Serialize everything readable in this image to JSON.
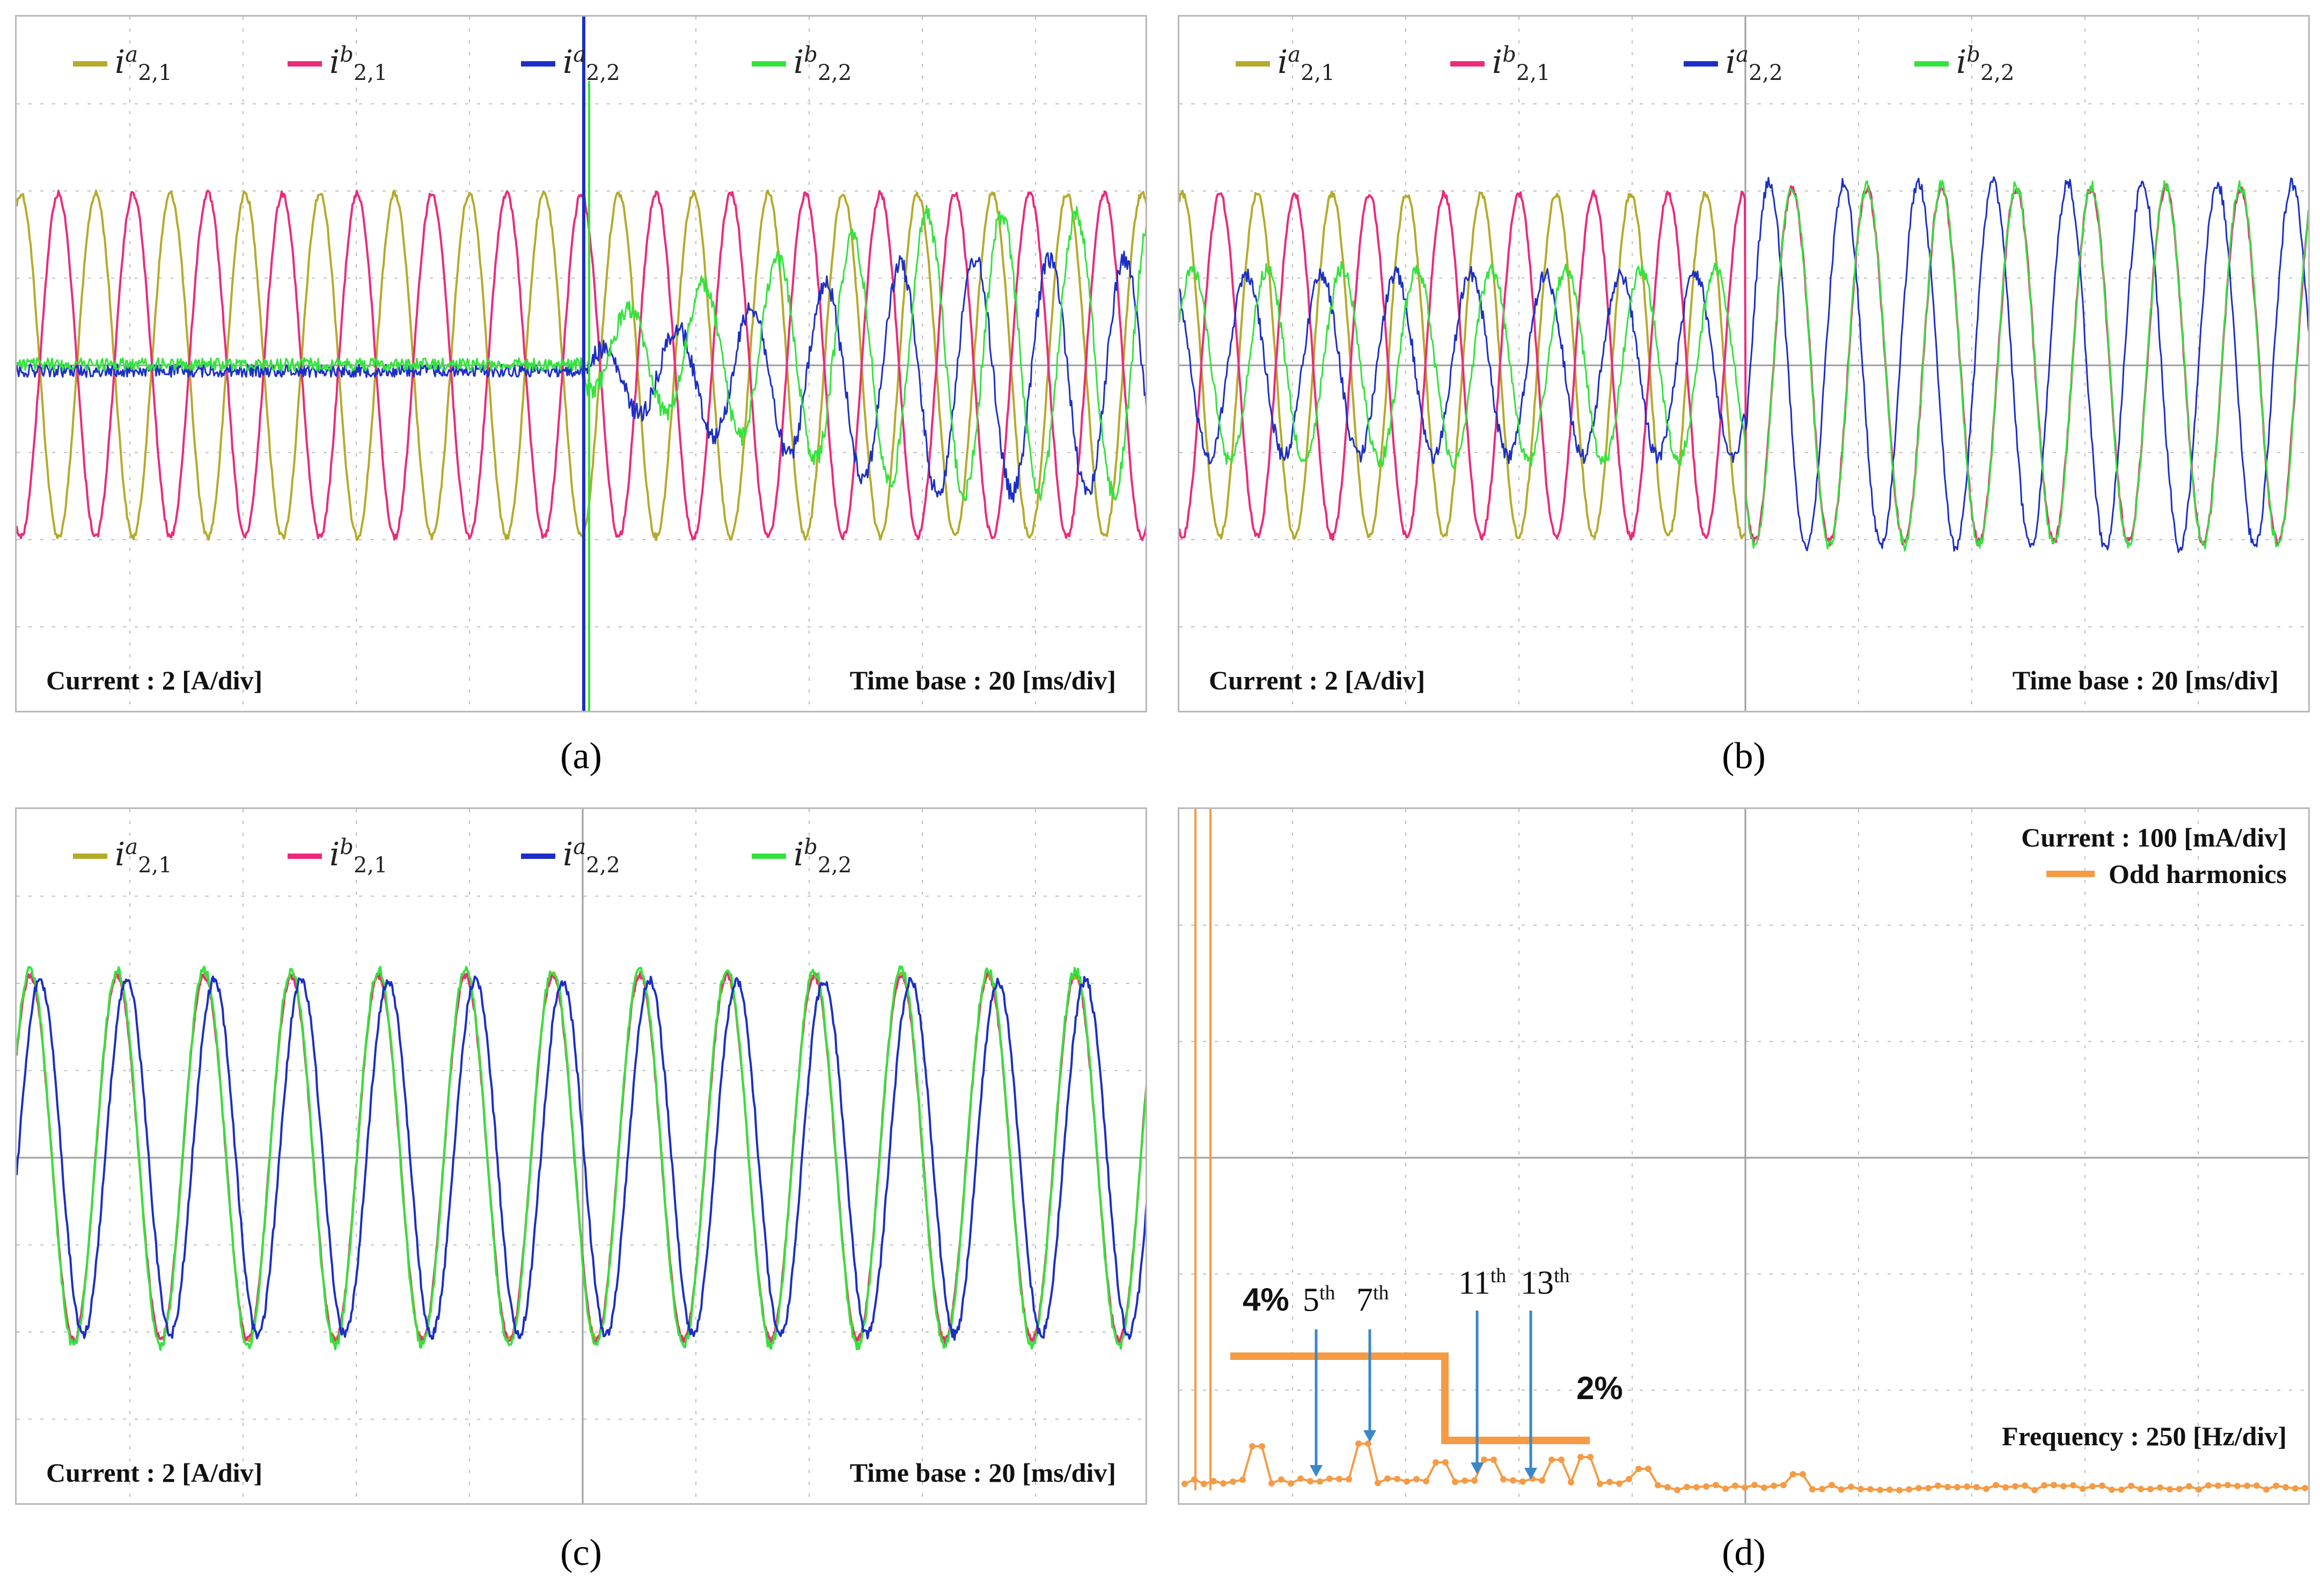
{
  "colors": {
    "ia21": "#b5aa2b",
    "ib21": "#ec2a7c",
    "ia22": "#1b2fc6",
    "ib22": "#33e33c",
    "harmonics": "#f59b45",
    "arrow": "#3a87c8",
    "grid": "#bdbdbd"
  },
  "legend": [
    {
      "key": "ia21",
      "base": "i",
      "sup": "a",
      "sub": "2,1"
    },
    {
      "key": "ib21",
      "base": "i",
      "sup": "b",
      "sub": "2,1"
    },
    {
      "key": "ia22",
      "base": "i",
      "sup": "a",
      "sub": "2,2"
    },
    {
      "key": "ib22",
      "base": "i",
      "sup": "b",
      "sub": "2,2"
    }
  ],
  "panels": {
    "a": {
      "caption": "(a)",
      "scale_left": "Current : 2 [A/div]",
      "scale_right": "Time base : 20 [ms/div]"
    },
    "b": {
      "caption": "(b)",
      "scale_left": "Current : 2 [A/div]",
      "scale_right": "Time base : 20 [ms/div]"
    },
    "c": {
      "caption": "(c)",
      "scale_left": "Current : 2 [A/div]",
      "scale_right": "Time base : 20 [ms/div]"
    },
    "d": {
      "caption": "(d)",
      "scale_top": "Current : 100 [mA/div]",
      "legend_label": "Odd harmonics",
      "scale_bottom": "Frequency : 250 [Hz/div]",
      "limit_high": "4%",
      "limit_low": "2%",
      "h5": "5",
      "h7": "7",
      "h11": "11",
      "h13": "13",
      "th": "th"
    }
  },
  "chart_data": [
    {
      "type": "line",
      "title": "(a)",
      "xlabel": "Time base : 20 [ms/div]",
      "ylabel": "Current : 2 [A/div]",
      "x_divisions": 10,
      "y_divisions": 6,
      "ylim_A": [
        -6,
        6
      ],
      "description_of_series": "i2,1 currents steady sinusoids throughout; i2,2 currents near zero until step at ~5 div then ramp up",
      "series": [
        {
          "name": "i^a_{2,1}",
          "amplitude_A": 3.0,
          "period_div": 0.66,
          "phase_deg": 0
        },
        {
          "name": "i^b_{2,1}",
          "amplitude_A": 3.0,
          "period_div": 0.66,
          "phase_deg": 180
        },
        {
          "name": "i^a_{2,2}",
          "amplitude_A_before": 0.1,
          "amplitude_A_after": 1.8,
          "period_div": 0.66,
          "step_at_div": 5.0
        },
        {
          "name": "i^b_{2,2}",
          "amplitude_A_before": 0.1,
          "amplitude_A_after": 1.8,
          "period_div": 0.66,
          "step_at_div": 5.0
        }
      ]
    },
    {
      "type": "line",
      "title": "(b)",
      "xlabel": "Time base : 20 [ms/div]",
      "ylabel": "Current : 2 [A/div]",
      "x_divisions": 10,
      "y_divisions": 6,
      "ylim_A": [
        -6,
        6
      ],
      "series": [
        {
          "name": "i^a_{2,1}",
          "amplitude_A": 3.0,
          "period_div": 0.66,
          "ends_at_div": 5.0
        },
        {
          "name": "i^b_{2,1}",
          "amplitude_A": 3.0,
          "period_div": 0.66,
          "ends_at_div": 5.0
        },
        {
          "name": "i^a_{2,2}",
          "amplitude_A_before": 1.5,
          "amplitude_A_after": 3.2,
          "period_div": 0.66,
          "step_at_div": 5.0
        },
        {
          "name": "i^b_{2,2}",
          "amplitude_A_before": 1.5,
          "amplitude_A_after": 3.2,
          "period_div": 0.66,
          "step_at_div": 5.0
        }
      ]
    },
    {
      "type": "line",
      "title": "(c)",
      "xlabel": "Time base : 20 [ms/div]",
      "ylabel": "Current : 2 [A/div]",
      "x_divisions": 10,
      "y_divisions": 6,
      "ylim_A": [
        -6,
        6
      ],
      "series": [
        {
          "name": "i^a_{2,1}",
          "amplitude_A": 3.1,
          "period_div": 0.81,
          "phase_deg": 0
        },
        {
          "name": "i^b_{2,1}",
          "amplitude_A": 3.1,
          "period_div": 0.81,
          "phase_deg": 0
        },
        {
          "name": "i^a_{2,2}",
          "amplitude_A": 3.1,
          "period_div": 0.81,
          "phase_deg": -35
        },
        {
          "name": "i^b_{2,2}",
          "amplitude_A": 3.1,
          "period_div": 0.81,
          "phase_deg": 0
        }
      ]
    },
    {
      "type": "line",
      "title": "(d)",
      "xlabel": "Frequency : 250 [Hz/div]",
      "ylabel": "Current : 100 [mA/div]",
      "series": [
        {
          "name": "Odd harmonics"
        }
      ],
      "fundamental_peak_at_div": 0.15,
      "harmonic_orders": [
        5,
        7,
        11,
        13
      ],
      "limits": [
        {
          "label": "4%",
          "from_order": 5,
          "to_order": 9
        },
        {
          "label": "2%",
          "from_order": 11,
          "to_order": 15
        }
      ]
    }
  ]
}
